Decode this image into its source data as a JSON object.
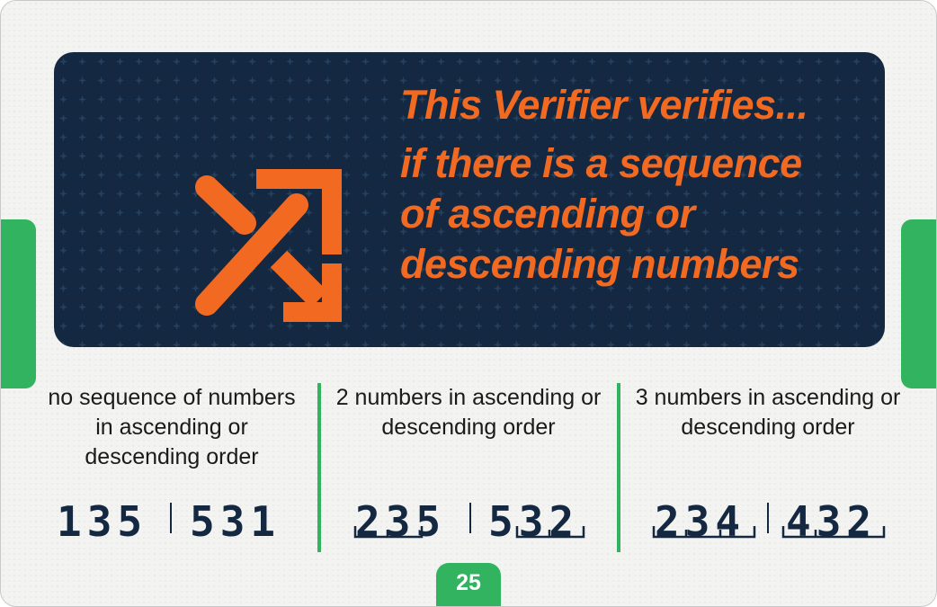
{
  "banner": {
    "title": "This Verifier verifies...",
    "body": "if there is a sequence\nof ascending or\ndescending numbers"
  },
  "columns": [
    {
      "caption": "no sequence of numbers in ascending or descending order",
      "left_number": "135",
      "right_number": "531"
    },
    {
      "caption": "2 numbers in ascending or descending order",
      "left_number": "235",
      "right_number": "532"
    },
    {
      "caption": "3 numbers in ascending or descending order",
      "left_number": "234",
      "right_number": "432"
    }
  ],
  "page_number": "25",
  "colors": {
    "navy": "#142941",
    "orange": "#f26a21",
    "green": "#31b35f"
  },
  "icons": [
    "shuffle-arrows-icon"
  ]
}
